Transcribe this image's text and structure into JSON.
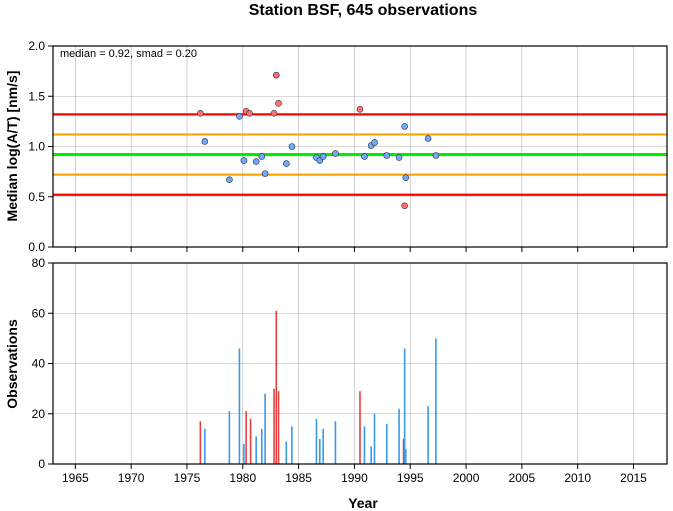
{
  "chart_data": [
    {
      "type": "scatter",
      "title": "Station BSF, 645 observations",
      "ylabel": "Median log(A/T) [nm/s]",
      "annotation": "median = 0.92, smad = 0.20",
      "xlim": [
        1963,
        2018
      ],
      "ylim": [
        0,
        2.0
      ],
      "yticks": [
        "0.0",
        "0.5",
        "1.0",
        "1.5",
        "2.0"
      ],
      "grid": true,
      "reference_lines": [
        {
          "y": 1.32,
          "color": "#ff0000"
        },
        {
          "y": 1.12,
          "color": "#ffa500"
        },
        {
          "y": 0.92,
          "color": "#00ee00"
        },
        {
          "y": 0.72,
          "color": "#ffa500"
        },
        {
          "y": 0.52,
          "color": "#ff0000"
        }
      ],
      "series": [
        {
          "color": "#ff6f6f",
          "points": [
            [
              1976.2,
              1.33
            ],
            [
              1980.3,
              1.35
            ],
            [
              1980.6,
              1.33
            ],
            [
              1982.8,
              1.33
            ],
            [
              1983.0,
              1.71
            ],
            [
              1983.2,
              1.43
            ],
            [
              1990.5,
              1.37
            ],
            [
              1994.5,
              0.41
            ]
          ]
        },
        {
          "color": "#6fa8ff",
          "points": [
            [
              1976.6,
              1.05
            ],
            [
              1978.8,
              0.67
            ],
            [
              1979.7,
              1.3
            ],
            [
              1980.1,
              0.86
            ],
            [
              1981.2,
              0.85
            ],
            [
              1981.7,
              0.9
            ],
            [
              1982.0,
              0.73
            ],
            [
              1983.9,
              0.83
            ],
            [
              1984.4,
              1.0
            ],
            [
              1986.6,
              0.89
            ],
            [
              1986.9,
              0.86
            ],
            [
              1987.2,
              0.9
            ],
            [
              1988.3,
              0.93
            ],
            [
              1990.9,
              0.9
            ],
            [
              1991.5,
              1.01
            ],
            [
              1991.8,
              1.04
            ],
            [
              1992.9,
              0.91
            ],
            [
              1994.0,
              0.89
            ],
            [
              1994.5,
              1.2
            ],
            [
              1994.6,
              0.69
            ],
            [
              1996.6,
              1.08
            ],
            [
              1997.3,
              0.91
            ]
          ]
        }
      ]
    },
    {
      "type": "bar",
      "xlabel": "Year",
      "ylabel": "Observations",
      "xlim": [
        1963,
        2018
      ],
      "ylim": [
        0,
        80
      ],
      "xticks": [
        "1965",
        "1970",
        "1975",
        "1980",
        "1985",
        "1990",
        "1995",
        "2000",
        "2005",
        "2010",
        "2015"
      ],
      "yticks": [
        "0",
        "20",
        "40",
        "60",
        "80"
      ],
      "grid": true,
      "series": [
        {
          "color": "#e84040",
          "bars": [
            [
              1976.2,
              17
            ],
            [
              1980.3,
              21
            ],
            [
              1980.7,
              18
            ],
            [
              1982.8,
              30
            ],
            [
              1983.0,
              61
            ],
            [
              1983.2,
              29
            ],
            [
              1990.5,
              29
            ],
            [
              1994.4,
              10
            ]
          ]
        },
        {
          "color": "#3a9ae8",
          "bars": [
            [
              1976.6,
              14
            ],
            [
              1978.8,
              21
            ],
            [
              1979.7,
              46
            ],
            [
              1980.1,
              8
            ],
            [
              1981.2,
              11
            ],
            [
              1981.7,
              14
            ],
            [
              1982.0,
              28
            ],
            [
              1983.9,
              9
            ],
            [
              1984.4,
              15
            ],
            [
              1986.6,
              18
            ],
            [
              1986.9,
              10
            ],
            [
              1987.2,
              14
            ],
            [
              1988.3,
              17
            ],
            [
              1990.9,
              15
            ],
            [
              1991.5,
              7
            ],
            [
              1991.8,
              20
            ],
            [
              1992.9,
              16
            ],
            [
              1994.0,
              22
            ],
            [
              1994.5,
              46
            ],
            [
              1994.6,
              6
            ],
            [
              1996.6,
              23
            ],
            [
              1997.3,
              50
            ]
          ]
        }
      ]
    }
  ]
}
